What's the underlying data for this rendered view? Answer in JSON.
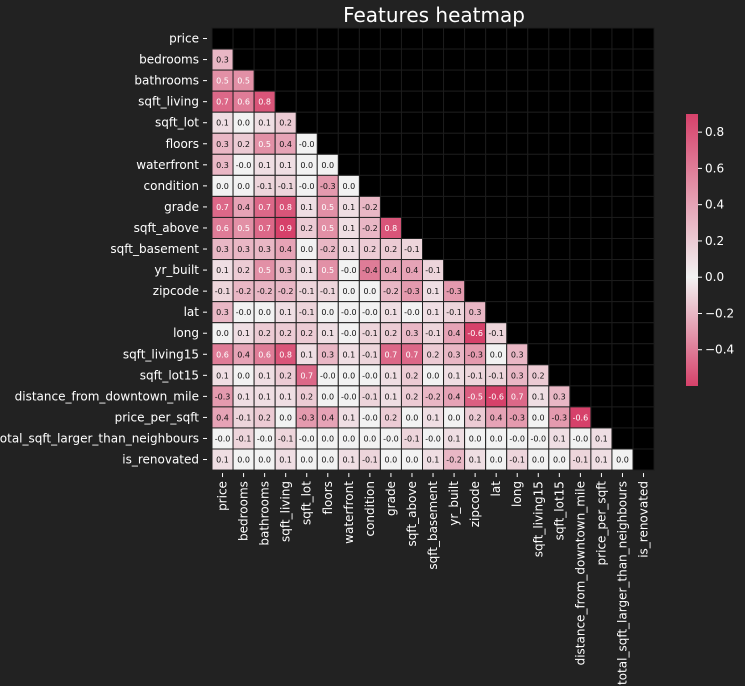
{
  "chart_data": {
    "type": "heatmap",
    "title": "Features heatmap",
    "features": [
      "price",
      "bedrooms",
      "bathrooms",
      "sqft_living",
      "sqft_lot",
      "floors",
      "waterfront",
      "condition",
      "grade",
      "sqft_above",
      "sqft_basement",
      "yr_built",
      "zipcode",
      "lat",
      "long",
      "sqft_living15",
      "sqft_lot15",
      "distance_from_downtown_mile",
      "price_per_sqft",
      "total_sqft_larger_than_neighbours",
      "is_renovated"
    ],
    "lower_triangle_labels": [
      [],
      [
        "0.3"
      ],
      [
        "0.5",
        "0.5"
      ],
      [
        "0.7",
        "0.6",
        "0.8"
      ],
      [
        "0.1",
        "0.0",
        "0.1",
        "0.2"
      ],
      [
        "0.3",
        "0.2",
        "0.5",
        "0.4",
        "-0.0"
      ],
      [
        "0.3",
        "-0.0",
        "0.1",
        "0.1",
        "0.0",
        "0.0"
      ],
      [
        "0.0",
        "0.0",
        "-0.1",
        "-0.1",
        "-0.0",
        "-0.3",
        "0.0"
      ],
      [
        "0.7",
        "0.4",
        "0.7",
        "0.8",
        "0.1",
        "0.5",
        "0.1",
        "-0.2"
      ],
      [
        "0.6",
        "0.5",
        "0.7",
        "0.9",
        "0.2",
        "0.5",
        "0.1",
        "-0.2",
        "0.8"
      ],
      [
        "0.3",
        "0.3",
        "0.3",
        "0.4",
        "0.0",
        "-0.2",
        "0.1",
        "0.2",
        "0.2",
        "-0.1"
      ],
      [
        "0.1",
        "0.2",
        "0.5",
        "0.3",
        "0.1",
        "0.5",
        "-0.0",
        "-0.4",
        "0.4",
        "0.4",
        "-0.1"
      ],
      [
        "-0.1",
        "-0.2",
        "-0.2",
        "-0.2",
        "-0.1",
        "-0.1",
        "0.0",
        "0.0",
        "-0.2",
        "-0.3",
        "0.1",
        "-0.3"
      ],
      [
        "0.3",
        "-0.0",
        "0.0",
        "0.1",
        "-0.1",
        "0.0",
        "-0.0",
        "-0.0",
        "0.1",
        "-0.0",
        "0.1",
        "-0.1",
        "0.3"
      ],
      [
        "0.0",
        "0.1",
        "0.2",
        "0.2",
        "0.2",
        "0.1",
        "-0.0",
        "-0.1",
        "0.2",
        "0.3",
        "-0.1",
        "0.4",
        "-0.6",
        "-0.1"
      ],
      [
        "0.6",
        "0.4",
        "0.6",
        "0.8",
        "0.1",
        "0.3",
        "0.1",
        "-0.1",
        "0.7",
        "0.7",
        "0.2",
        "0.3",
        "-0.3",
        "0.0",
        "0.3"
      ],
      [
        "0.1",
        "0.0",
        "0.1",
        "0.2",
        "0.7",
        "-0.0",
        "0.0",
        "-0.0",
        "0.1",
        "0.2",
        "0.0",
        "0.1",
        "-0.1",
        "-0.1",
        "0.3",
        "0.2"
      ],
      [
        "-0.3",
        "0.1",
        "0.1",
        "0.1",
        "0.2",
        "0.0",
        "-0.0",
        "-0.1",
        "0.1",
        "0.2",
        "-0.2",
        "0.4",
        "-0.5",
        "-0.6",
        "0.7",
        "0.1",
        "0.3"
      ],
      [
        "0.4",
        "-0.1",
        "0.2",
        "0.0",
        "-0.3",
        "0.4",
        "0.1",
        "-0.0",
        "0.2",
        "0.0",
        "0.1",
        "0.0",
        "0.2",
        "0.4",
        "-0.3",
        "0.0",
        "-0.3",
        "-0.6"
      ],
      [
        "-0.0",
        "-0.1",
        "-0.0",
        "-0.1",
        "-0.0",
        "0.0",
        "0.0",
        "0.0",
        "-0.0",
        "-0.1",
        "-0.0",
        "0.1",
        "0.0",
        "0.0",
        "-0.0",
        "-0.0",
        "0.1",
        "-0.0",
        "0.1"
      ],
      [
        "0.1",
        "0.0",
        "0.0",
        "0.1",
        "0.0",
        "0.0",
        "0.1",
        "-0.1",
        "0.0",
        "0.0",
        "0.1",
        "-0.2",
        "0.1",
        "0.0",
        "-0.1",
        "0.0",
        "0.0",
        "-0.1",
        "0.1",
        "0.0"
      ]
    ],
    "color_range": [
      -0.6,
      0.9
    ],
    "colorbar_ticks": [
      0.8,
      0.6,
      0.4,
      0.2,
      0.0,
      -0.2,
      -0.4
    ],
    "colorbar_tick_labels": [
      "0.8",
      "0.6",
      "0.4",
      "0.2",
      "0.0",
      "−0.2",
      "−0.4"
    ],
    "colormap": {
      "negative": "#d6416a",
      "neutral": "#f2f2f2",
      "positive": "#d6416a"
    },
    "masked_color": "#000000",
    "background": "#222222",
    "grid": true,
    "legend": "colorbar-right"
  }
}
